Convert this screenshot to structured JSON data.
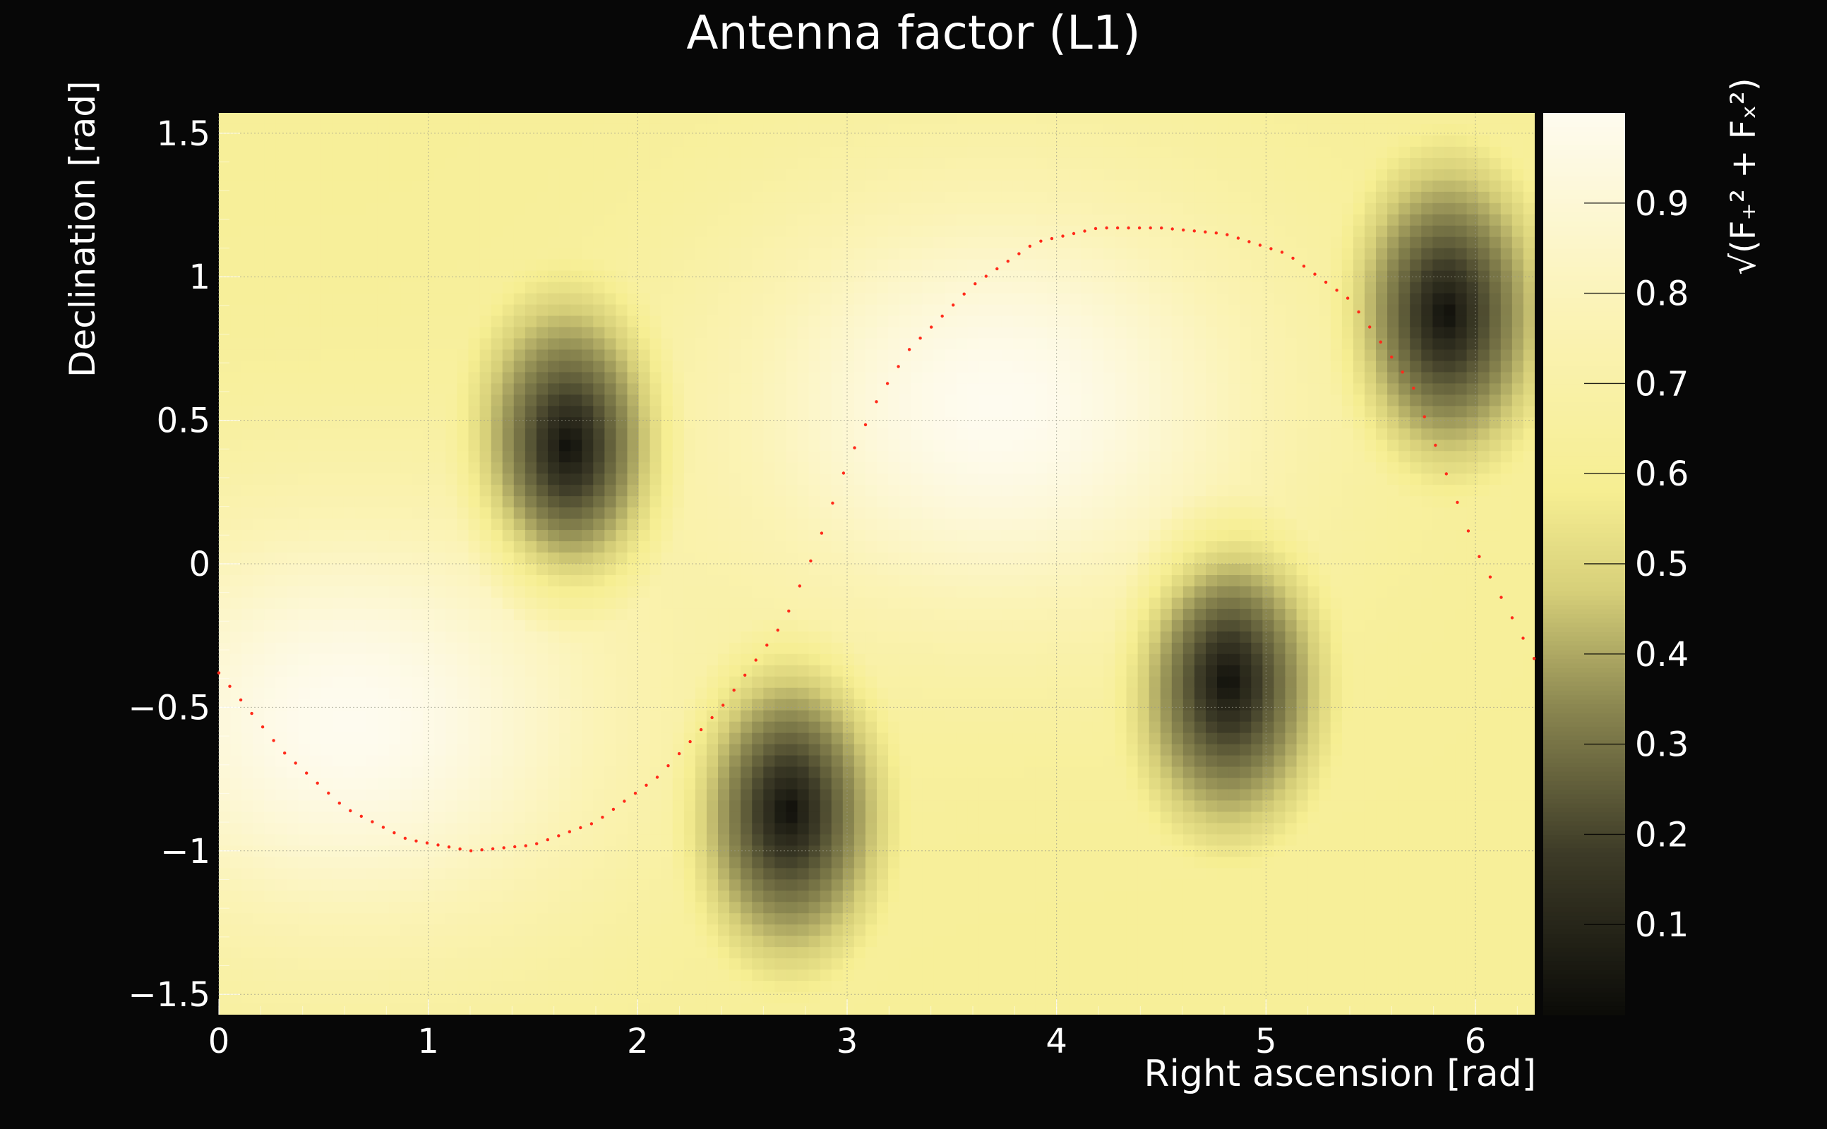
{
  "chart_data": {
    "type": "heatmap",
    "title": "Antenna factor (L1)",
    "xlabel": "Right ascension [rad]",
    "ylabel": "Declination [rad]",
    "zlabel": "√(F₊² + Fₓ²)",
    "xlim": [
      0,
      6.2832
    ],
    "ylim": [
      -1.5708,
      1.5708
    ],
    "zlim": [
      0,
      1
    ],
    "x_ticks": [
      "0",
      "1",
      "2",
      "3",
      "4",
      "5",
      "6"
    ],
    "y_ticks": [
      "1.5",
      "1",
      "0.5",
      "0",
      "−0.5",
      "−1",
      "−1.5"
    ],
    "z_ticks": [
      "0.9",
      "0.8",
      "0.7",
      "0.6",
      "0.5",
      "0.4",
      "0.3",
      "0.2",
      "0.1"
    ],
    "minima": [
      {
        "ra": 1.67,
        "dec": 0.41
      },
      {
        "ra": 2.72,
        "dec": -0.86
      },
      {
        "ra": 4.82,
        "dec": -0.41
      },
      {
        "ra": 5.86,
        "dec": 0.87
      }
    ],
    "maxima": [
      {
        "ra": 0.62,
        "dec": -0.55
      },
      {
        "ra": 3.72,
        "dec": 0.55
      }
    ],
    "galactic_plane_curve": {
      "color": "#ff2a1a",
      "x": [
        0,
        0.3,
        0.6,
        0.9,
        1.2,
        1.5,
        1.8,
        2.1,
        2.4,
        2.7,
        2.85,
        3.0,
        3.15,
        3.3,
        3.6,
        3.9,
        4.2,
        4.5,
        4.8,
        5.1,
        5.4,
        5.7,
        6.0,
        6.28
      ],
      "y": [
        -0.38,
        -0.65,
        -0.85,
        -0.96,
        -1.0,
        -0.98,
        -0.9,
        -0.74,
        -0.5,
        -0.2,
        0.05,
        0.35,
        0.58,
        0.75,
        0.97,
        1.12,
        1.17,
        1.17,
        1.15,
        1.08,
        0.92,
        0.62,
        0.05,
        -0.33
      ]
    },
    "grid": true,
    "colormap": [
      "#0b0b08",
      "#3d3b27",
      "#8a8650",
      "#d6cf79",
      "#f6ee92",
      "#fbf3b6",
      "#fefbef"
    ]
  }
}
